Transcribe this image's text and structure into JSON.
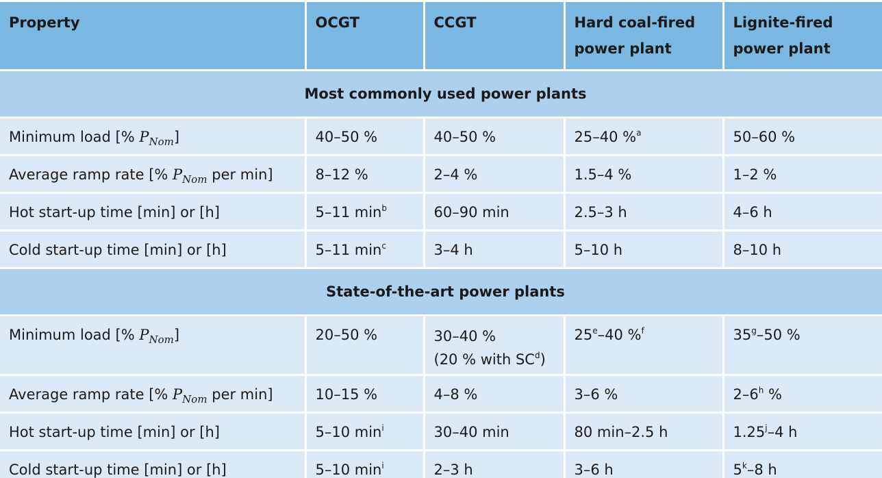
{
  "header": {
    "property": "Property",
    "ocgt": "OCGT",
    "ccgt": "CCGT",
    "hard_coal": "Hard coal-fired power plant",
    "lignite": "Lignite-fired power plant"
  },
  "sections": {
    "common": "Most commonly used power plants",
    "state_of_art": "State-of-the-art power plants"
  },
  "labels": {
    "min_load_pre": "Minimum load [% ",
    "pnom_p": "P",
    "pnom_sub": "Nom",
    "min_load_post": "]",
    "ramp_pre": "Average ramp rate [% ",
    "ramp_post": " per min]",
    "hot_start": "Hot start-up time [min] or [h]",
    "cold_start": "Cold start-up time [min] or [h]"
  },
  "common": {
    "min_load": {
      "ocgt": "40–50 %",
      "ccgt": "40–50 %",
      "hard_coal": "25–40 %",
      "hard_coal_sup": "a",
      "lignite": "50–60 %"
    },
    "ramp": {
      "ocgt": "8–12 %",
      "ccgt": "2–4 %",
      "hard_coal": "1.5–4 %",
      "lignite": "1–2 %"
    },
    "hot_start": {
      "ocgt": "5–11 min",
      "ocgt_sup": "b",
      "ccgt": "60–90 min",
      "hard_coal": "2.5–3 h",
      "lignite": "4–6 h"
    },
    "cold_start": {
      "ocgt": "5–11 min",
      "ocgt_sup": "c",
      "ccgt": "3–4 h",
      "hard_coal": "5–10 h",
      "lignite": "8–10 h"
    }
  },
  "state_of_art": {
    "min_load": {
      "ocgt": "20–50 %",
      "ccgt_line1": "30–40 %",
      "ccgt_line2_pre": "(20 % with SC",
      "ccgt_line2_sup": "d",
      "ccgt_line2_post": ")",
      "hard_coal_a": "25",
      "hard_coal_sup1": "e",
      "hard_coal_b": "–40 %",
      "hard_coal_sup2": "f",
      "lignite_a": "35",
      "lignite_sup": "g",
      "lignite_b": "–50 %"
    },
    "ramp": {
      "ocgt": "10–15 %",
      "ccgt": "4–8 %",
      "hard_coal": "3–6 %",
      "lignite_a": "2–6",
      "lignite_sup": "h",
      "lignite_b": " %"
    },
    "hot_start": {
      "ocgt": "5–10 min",
      "ocgt_sup": "i",
      "ccgt": "30–40 min",
      "hard_coal": "80 min–2.5 h",
      "lignite_a": "1.25",
      "lignite_sup": "j",
      "lignite_b": "–4 h"
    },
    "cold_start": {
      "ocgt": "5–10 min",
      "ocgt_sup": "i",
      "ccgt": "2–3 h",
      "hard_coal": "3–6 h",
      "lignite_a": "5",
      "lignite_sup": "k",
      "lignite_b": "–8 h"
    }
  },
  "colors": {
    "header_bg": "#7ab8e2",
    "section_bg": "#acd0ee",
    "cell_bg": "#dce9f6"
  }
}
